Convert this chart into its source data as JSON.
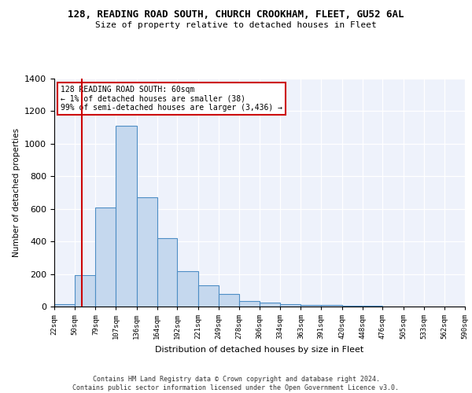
{
  "title": "128, READING ROAD SOUTH, CHURCH CROOKHAM, FLEET, GU52 6AL",
  "subtitle": "Size of property relative to detached houses in Fleet",
  "xlabel": "Distribution of detached houses by size in Fleet",
  "ylabel": "Number of detached properties",
  "annotation_lines": [
    "128 READING ROAD SOUTH: 60sqm",
    "← 1% of detached houses are smaller (38)",
    "99% of semi-detached houses are larger (3,436) →"
  ],
  "footer": "Contains HM Land Registry data © Crown copyright and database right 2024.\nContains public sector information licensed under the Open Government Licence v3.0.",
  "bin_edges": [
    22,
    50,
    79,
    107,
    136,
    164,
    192,
    221,
    249,
    278,
    306,
    334,
    363,
    391,
    420,
    448,
    476,
    505,
    533,
    562,
    590
  ],
  "bar_heights": [
    15,
    195,
    610,
    1110,
    670,
    420,
    215,
    130,
    75,
    35,
    25,
    15,
    12,
    8,
    5,
    3,
    2,
    2,
    1,
    1
  ],
  "bar_color": "#c5d8ee",
  "bar_edge_color": "#4e8ec5",
  "bar_alpha": 1.0,
  "redline_x": 60,
  "redline_color": "#cc0000",
  "ylim": [
    0,
    1400
  ],
  "yticks": [
    0,
    200,
    400,
    600,
    800,
    1000,
    1200,
    1400
  ],
  "bg_color": "#eef2fb",
  "grid_color": "#ffffff",
  "annotation_box_edge": "#cc0000"
}
